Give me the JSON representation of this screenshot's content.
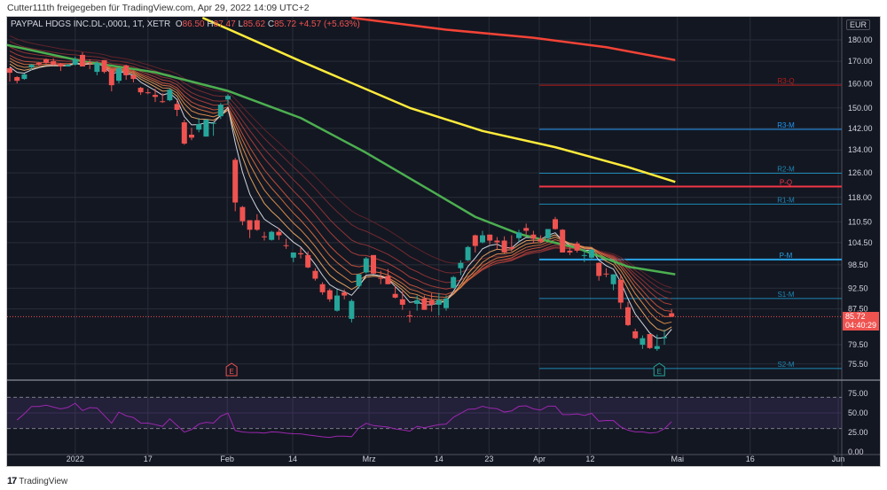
{
  "share_line": "Cutter111th freigegeben für TradingView.com, Apr 29, 2022 14:09 UTC+2",
  "legend": {
    "symbol": "PAYPAL HDGS INC.DL-,0001, 1T, XETR",
    "o_label": "O",
    "o": "86.50",
    "h_label": "H",
    "h": "87.47",
    "l_label": "L",
    "l": "85.62",
    "c_label": "C",
    "c": "85.72",
    "change": "+4.57 (+5.63%)"
  },
  "currency": "EUR",
  "last_price": {
    "value": "85.72",
    "countdown": "04:40:29"
  },
  "footer": {
    "logo": "17",
    "brand": "TradingView"
  },
  "colors": {
    "bg": "#131722",
    "up": "#26a69a",
    "down": "#ef5350",
    "grid": "#2a2e39",
    "pivot_blue": "#2196f3",
    "pivot_red": "#f23645",
    "ma_yellow": "#ffeb3b",
    "ma_red": "#f44336",
    "ma_green": "#4caf50",
    "rsi": "#9c27b0"
  },
  "chart_data": {
    "type": "candlestick",
    "yscale": "log",
    "price_axis_ticks": [
      "180.00",
      "170.00",
      "160.00",
      "150.00",
      "142.00",
      "134.00",
      "126.00",
      "118.00",
      "110.50",
      "104.50",
      "98.50",
      "92.50",
      "87.50",
      "79.50",
      "75.50"
    ],
    "rsi_axis_ticks": [
      "75.00",
      "50.00",
      "25.00",
      "0.00"
    ],
    "rsi_band": [
      30,
      70
    ],
    "time_ticks": [
      {
        "label": "2022",
        "bar": 9
      },
      {
        "label": "17",
        "bar": 19
      },
      {
        "label": "Feb",
        "bar": 29.9
      },
      {
        "label": "14",
        "bar": 38.9
      },
      {
        "label": "Mrz",
        "bar": 49.4
      },
      {
        "label": "14",
        "bar": 59
      },
      {
        "label": "23",
        "bar": 65.9
      },
      {
        "label": "Apr",
        "bar": 72.8
      },
      {
        "label": "12",
        "bar": 79.8
      },
      {
        "label": "Mai",
        "bar": 91.8
      },
      {
        "label": "16",
        "bar": 101.8
      },
      {
        "label": "Jun",
        "bar": 113.9
      }
    ],
    "ohlc": [
      [
        166.8,
        167.2,
        160.9,
        164.8
      ],
      [
        162.9,
        163.3,
        160.2,
        161.3
      ],
      [
        162.1,
        164.5,
        161.7,
        164.1
      ],
      [
        167.2,
        168.8,
        166.0,
        168.4
      ],
      [
        169.2,
        169.6,
        168.0,
        168.4
      ],
      [
        170.9,
        171.3,
        168.8,
        169.2
      ],
      [
        170.0,
        171.3,
        168.0,
        168.4
      ],
      [
        168.8,
        169.2,
        165.6,
        167.6
      ],
      [
        167.6,
        168.8,
        167.6,
        168.4
      ],
      [
        168.4,
        172.1,
        168.0,
        170.9
      ],
      [
        172.9,
        174.1,
        167.6,
        167.6
      ],
      [
        169.6,
        170.9,
        166.4,
        169.4
      ],
      [
        165.2,
        170.0,
        163.7,
        169.2
      ],
      [
        170.5,
        170.5,
        164.5,
        165.2
      ],
      [
        166.4,
        166.4,
        156.8,
        159.4
      ],
      [
        161.3,
        167.2,
        160.2,
        166.8
      ],
      [
        168.0,
        168.4,
        161.7,
        163.7
      ],
      [
        163.7,
        165.6,
        160.6,
        162.1
      ],
      [
        158.3,
        158.7,
        155.3,
        156.4
      ],
      [
        156.4,
        157.9,
        155.6,
        156.2
      ],
      [
        155.3,
        157.9,
        152.4,
        154.5
      ],
      [
        152.7,
        156.0,
        152.0,
        152.4
      ],
      [
        153.1,
        158.3,
        152.7,
        157.5
      ],
      [
        151.6,
        153.1,
        146.7,
        149.2
      ],
      [
        144.3,
        145.3,
        135.9,
        136.3
      ],
      [
        139.6,
        142.2,
        137.6,
        138.5
      ],
      [
        141.5,
        146.0,
        140.5,
        143.6
      ],
      [
        138.9,
        145.6,
        138.9,
        145.3
      ],
      [
        143.9,
        144.3,
        139.2,
        144.1
      ],
      [
        146.7,
        152.0,
        145.6,
        151.3
      ],
      [
        153.4,
        155.6,
        151.3,
        154.9
      ],
      [
        130.5,
        131.2,
        113.7,
        116.4
      ],
      [
        115.0,
        115.3,
        109.5,
        110.7
      ],
      [
        111.0,
        111.0,
        105.8,
        108.2
      ],
      [
        111.0,
        112.8,
        107.9,
        108.2
      ],
      [
        106.3,
        107.6,
        105.1,
        106.2
      ],
      [
        105.3,
        107.9,
        105.1,
        107.6
      ],
      [
        107.6,
        108.7,
        105.3,
        106.6
      ],
      [
        103.8,
        105.6,
        102.8,
        103.6
      ],
      [
        100.4,
        101.8,
        99.2,
        101.8
      ],
      [
        101.6,
        103.1,
        100.2,
        101.3
      ],
      [
        101.1,
        102.1,
        97.6,
        97.8
      ],
      [
        96.9,
        97.6,
        94.4,
        94.9
      ],
      [
        93.5,
        94.0,
        90.9,
        91.5
      ],
      [
        92.0,
        92.4,
        89.2,
        89.8
      ],
      [
        87.1,
        92.2,
        86.9,
        90.7
      ],
      [
        91.5,
        92.2,
        89.8,
        90.7
      ],
      [
        85.2,
        89.8,
        84.4,
        89.4
      ],
      [
        93.1,
        96.2,
        92.4,
        96.0
      ],
      [
        96.5,
        100.6,
        96.2,
        100.2
      ],
      [
        101.1,
        101.1,
        96.2,
        96.2
      ],
      [
        95.1,
        96.9,
        93.5,
        95.0
      ],
      [
        95.6,
        97.4,
        93.5,
        93.5
      ],
      [
        91.1,
        93.1,
        90.0,
        90.2
      ],
      [
        89.8,
        91.8,
        87.3,
        88.5
      ],
      [
        86.0,
        87.1,
        84.4,
        85.9
      ],
      [
        88.7,
        90.7,
        87.1,
        89.6
      ],
      [
        90.0,
        90.7,
        87.3,
        87.3
      ],
      [
        89.6,
        91.3,
        86.9,
        88.5
      ],
      [
        88.5,
        91.3,
        86.0,
        89.6
      ],
      [
        87.7,
        90.7,
        87.1,
        90.0
      ],
      [
        92.6,
        95.6,
        92.4,
        95.3
      ],
      [
        97.6,
        99.7,
        95.8,
        99.0
      ],
      [
        99.7,
        103.6,
        99.5,
        103.3
      ],
      [
        106.6,
        106.8,
        101.8,
        103.6
      ],
      [
        104.6,
        107.9,
        104.3,
        106.6
      ],
      [
        106.8,
        106.8,
        104.1,
        105.1
      ],
      [
        105.1,
        106.1,
        102.8,
        104.6
      ],
      [
        105.1,
        106.3,
        101.6,
        101.8
      ],
      [
        103.3,
        106.6,
        102.1,
        102.8
      ],
      [
        105.8,
        108.2,
        104.8,
        107.4
      ],
      [
        108.7,
        110.0,
        106.8,
        107.9
      ],
      [
        106.8,
        107.9,
        104.3,
        105.6
      ],
      [
        105.6,
        106.6,
        104.3,
        104.8
      ],
      [
        105.8,
        108.4,
        105.3,
        108.4
      ],
      [
        111.3,
        112.0,
        108.2,
        108.4
      ],
      [
        108.2,
        108.4,
        101.8,
        101.8
      ],
      [
        102.3,
        103.3,
        101.1,
        101.8
      ],
      [
        104.3,
        104.8,
        101.8,
        102.3
      ],
      [
        100.9,
        102.8,
        99.2,
        101.1
      ],
      [
        100.4,
        102.8,
        99.9,
        102.6
      ],
      [
        99.0,
        99.2,
        94.4,
        95.6
      ],
      [
        96.2,
        97.6,
        95.3,
        96.1
      ],
      [
        93.5,
        96.0,
        92.0,
        96.0
      ],
      [
        94.6,
        95.8,
        87.5,
        89.0
      ],
      [
        87.9,
        89.2,
        83.6,
        83.8
      ],
      [
        82.4,
        83.0,
        80.7,
        80.9
      ],
      [
        79.5,
        81.5,
        78.6,
        80.9
      ],
      [
        81.8,
        81.8,
        78.6,
        78.8
      ],
      [
        78.6,
        81.7,
        78.2,
        79.2
      ],
      [
        80.9,
        82.8,
        79.5,
        81.15
      ],
      [
        86.5,
        87.47,
        85.62,
        85.72
      ]
    ],
    "moving_averages": [
      {
        "color": "#ffeb3b",
        "points": [
          [
            26.5,
            191
          ],
          [
            40,
            170
          ],
          [
            55,
            150
          ],
          [
            65,
            141
          ],
          [
            75,
            135
          ],
          [
            85,
            128
          ],
          [
            91.5,
            123
          ]
        ]
      },
      {
        "color": "#f44336",
        "points": [
          [
            47,
            191
          ],
          [
            60,
            185
          ],
          [
            72,
            181
          ],
          [
            82,
            176.5
          ],
          [
            91.5,
            170.5
          ]
        ]
      },
      {
        "color": "#4caf50",
        "points": [
          [
            -1,
            178
          ],
          [
            10,
            170
          ],
          [
            20,
            165
          ],
          [
            30,
            157
          ],
          [
            40,
            146
          ],
          [
            49,
            133
          ],
          [
            58,
            120
          ],
          [
            64,
            112
          ],
          [
            70,
            107
          ],
          [
            78,
            103
          ],
          [
            85,
            98
          ],
          [
            91.5,
            96
          ]
        ]
      }
    ],
    "ema_ribbon_lengths": [
      4,
      6,
      8,
      10,
      12,
      15,
      18,
      22,
      26
    ],
    "ema_ribbon_colors": [
      "#d1d4dc",
      "#e0a060",
      "#d9884a",
      "#cc6a3e",
      "#c0503a",
      "#a63e38",
      "#8c3335",
      "#752a30",
      "#5e232a"
    ],
    "pivots": [
      {
        "label": "R3-Q",
        "value": 159.4,
        "color": "#b71c1c"
      },
      {
        "label": "R3-M",
        "value": 141.6,
        "color": "#2196f3"
      },
      {
        "label": "R2-M",
        "value": 125.9,
        "color": "#1e88b5"
      },
      {
        "label": "P-Q",
        "value": 121.5,
        "color": "#f23645"
      },
      {
        "label": "R1-M",
        "value": 115.9,
        "color": "#1e88b5"
      },
      {
        "label": "P-M",
        "value": 99.9,
        "color": "#29a3e6"
      },
      {
        "label": "S1-M",
        "value": 90.0,
        "color": "#1e88b5"
      },
      {
        "label": "S2-M",
        "value": 74.6,
        "color": "#1e88b5"
      }
    ],
    "pivot_start_bar": 72.8,
    "earnings": [
      {
        "label": "E",
        "bar": 30.5,
        "color": "#ef5350"
      },
      {
        "label": "E",
        "bar": 89.3,
        "color": "#26a69a"
      }
    ],
    "rsi_period": 14
  }
}
